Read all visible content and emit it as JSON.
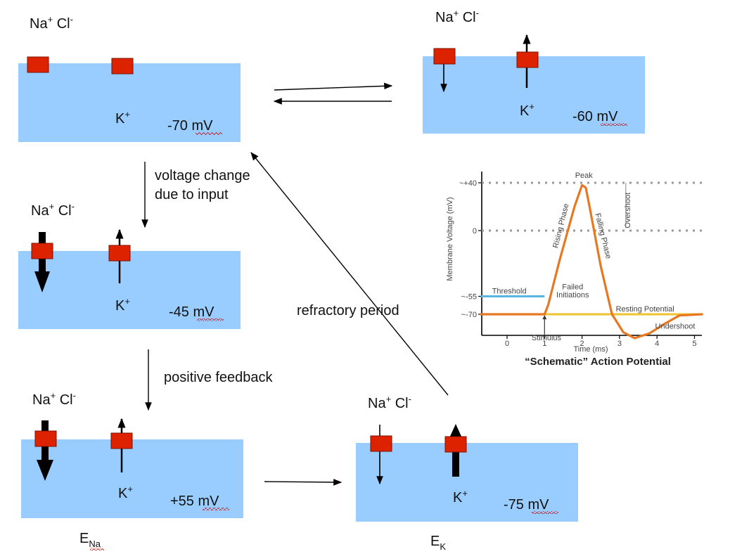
{
  "diagram": {
    "ion_label": {
      "na": "Na",
      "na_sup": "+",
      "cl": "Cl",
      "cl_sup": "-",
      "k": "K",
      "k_sup": "+"
    },
    "states": [
      {
        "id": "resting",
        "voltage": "-70 mV"
      },
      {
        "id": "threshold",
        "voltage": "-60 mV"
      },
      {
        "id": "depolarizing",
        "voltage": "-45 mV"
      },
      {
        "id": "peak",
        "voltage": "+55 mV",
        "equilibrium_label": "E",
        "equilibrium_sub": "Na"
      },
      {
        "id": "hyperpolarized",
        "voltage": "-75 mV",
        "equilibrium_label": "E",
        "equilibrium_sub": "K"
      }
    ],
    "arrow_labels": {
      "voltage_change_line1": "voltage change",
      "voltage_change_line2": "due to input",
      "positive_feedback": "positive feedback",
      "refractory_period": "refractory period"
    },
    "colors": {
      "membrane": "#99ccff",
      "channel": "#dd2200",
      "action_potential": "#e87722",
      "threshold": "#5ab4e0",
      "failed": "#f2c230"
    }
  },
  "chart_data": {
    "type": "line",
    "title": "“Schematic” Action Potential",
    "xlabel": "Time (ms)",
    "ylabel": "Membrane Voltage (mV)",
    "xlim": [
      -0.7,
      5.2
    ],
    "ylim": [
      -90,
      50
    ],
    "x_ticks": [
      "0",
      "1",
      "2",
      "3",
      "4",
      "5"
    ],
    "y_ticks": [
      "~+40",
      "0",
      "~-55",
      "~-70"
    ],
    "y_tick_values": [
      40,
      0,
      -55,
      -70
    ],
    "grid": "dotted lines at +40 and 0",
    "series": [
      {
        "x": [
          -0.7,
          1.0,
          1.1,
          1.4,
          1.8,
          2.0,
          2.1,
          2.2,
          2.5,
          2.8,
          3.1,
          3.4,
          3.8,
          4.2,
          4.6,
          5.2
        ],
        "y": [
          -70,
          -70,
          -62,
          -25,
          20,
          38,
          36,
          20,
          -30,
          -70,
          -85,
          -90,
          -86,
          -78,
          -71,
          -70
        ]
      }
    ],
    "threshold": {
      "label": "Threshold",
      "x": [
        -0.7,
        1.0
      ],
      "y": -55
    },
    "resting_potential": {
      "label": "Resting Potential",
      "x": [
        1.0,
        5.2
      ],
      "y": -70
    },
    "failed_initiations": {
      "label_line1": "Failed",
      "label_line2": "Initiations",
      "peaks": [
        -61,
        -64,
        -66,
        -68
      ]
    },
    "annotations": {
      "peak": "Peak",
      "rising_phase": "Rising Phase",
      "falling_phase": "Falling Phase",
      "overshoot": "Overshoot",
      "undershoot": "Undershoot",
      "stimulus": "Stimulus"
    }
  }
}
